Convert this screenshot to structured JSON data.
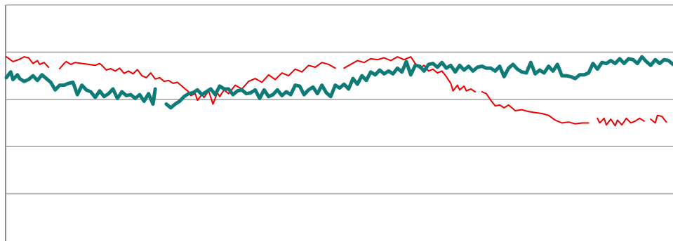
{
  "chart_data": {
    "type": "line",
    "title": "",
    "xlabel": "",
    "ylabel": "",
    "ylim": [
      0,
      5
    ],
    "yticks": [
      0,
      1,
      2,
      3,
      4,
      5
    ],
    "grid": true,
    "legend": "none",
    "x_count": 300,
    "series": [
      {
        "color": "#ee0000",
        "line_width": 2,
        "segments": [
          {
            "x": [
              0,
              3,
              6,
              8,
              10,
              12,
              14,
              15,
              17,
              19
            ],
            "y": [
              3.9,
              3.8,
              3.85,
              3.9,
              3.88,
              3.76,
              3.82,
              3.74,
              3.78,
              3.68
            ]
          },
          {
            "x": [
              24,
              26,
              27,
              29,
              31,
              34,
              37,
              40,
              42,
              43,
              45,
              47,
              49,
              51,
              53,
              55,
              57,
              59,
              61,
              63,
              65,
              67,
              69,
              71,
              73,
              75,
              77,
              79,
              80
            ],
            "y": [
              3.65,
              3.76,
              3.8,
              3.74,
              3.78,
              3.76,
              3.74,
              3.72,
              3.76,
              3.72,
              3.62,
              3.65,
              3.6,
              3.66,
              3.55,
              3.6,
              3.54,
              3.63,
              3.5,
              3.46,
              3.56,
              3.43,
              3.46,
              3.38,
              3.4,
              3.34,
              3.36,
              3.28,
              3.24
            ]
          },
          {
            "x": [
              80,
              82,
              83,
              85,
              86,
              88,
              89,
              91,
              93,
              95,
              96,
              98,
              100,
              103,
              106,
              109,
              112,
              115,
              118,
              121,
              124,
              127,
              130,
              133,
              136,
              139,
              142,
              145,
              148
            ],
            "y": [
              3.24,
              3.16,
              3.08,
              3.12,
              2.98,
              3.1,
              3.04,
              3.18,
              2.9,
              3.14,
              3.06,
              3.2,
              3.12,
              3.3,
              3.22,
              3.38,
              3.44,
              3.36,
              3.52,
              3.42,
              3.56,
              3.5,
              3.64,
              3.58,
              3.72,
              3.68,
              3.78,
              3.74,
              3.66
            ]
          },
          {
            "x": [
              152,
              155,
              158,
              161,
              164,
              167,
              170,
              173,
              176,
              179,
              182,
              184,
              186,
              188,
              190,
              192,
              194,
              196
            ],
            "y": [
              3.66,
              3.74,
              3.82,
              3.78,
              3.86,
              3.84,
              3.88,
              3.82,
              3.9,
              3.84,
              3.9,
              3.76,
              3.66,
              3.72,
              3.6,
              3.64,
              3.56,
              3.6
            ]
          },
          {
            "x": [
              196,
              198,
              200,
              201,
              203,
              204,
              206,
              207,
              209,
              211
            ],
            "y": [
              3.6,
              3.48,
              3.34,
              3.18,
              3.3,
              3.2,
              3.28,
              3.18,
              3.22,
              3.16
            ]
          },
          {
            "x": [
              214,
              216,
              218,
              220,
              222,
              224,
              226,
              229,
              232,
              235,
              238,
              241,
              244,
              247,
              250,
              253,
              256,
              259,
              262
            ],
            "y": [
              3.16,
              3.12,
              2.98,
              2.86,
              2.88,
              2.82,
              2.88,
              2.76,
              2.78,
              2.74,
              2.72,
              2.7,
              2.66,
              2.56,
              2.5,
              2.52,
              2.48,
              2.5,
              2.5
            ]
          },
          {
            "x": [
              266,
              267,
              269,
              270,
              272,
              274,
              275,
              277,
              279,
              281,
              283,
              285,
              287
            ],
            "y": [
              2.6,
              2.5,
              2.6,
              2.46,
              2.58,
              2.44,
              2.56,
              2.46,
              2.6,
              2.5,
              2.54,
              2.6,
              2.54
            ]
          },
          {
            "x": [
              290,
              292,
              293,
              295,
              297
            ],
            "y": [
              2.58,
              2.5,
              2.66,
              2.64,
              2.52
            ]
          }
        ]
      },
      {
        "color": "#0e7b78",
        "line_width": 5,
        "segments": [
          {
            "x": [
              0,
              2,
              3,
              5,
              6,
              8,
              10,
              12,
              14,
              16,
              18,
              20,
              22,
              24,
              26,
              28,
              30,
              32,
              34,
              36,
              38,
              40,
              42,
              44,
              46,
              48,
              50,
              52,
              54,
              56,
              58,
              60,
              62,
              64,
              66,
              67
            ],
            "y": [
              3.46,
              3.58,
              3.42,
              3.52,
              3.44,
              3.38,
              3.42,
              3.5,
              3.4,
              3.52,
              3.44,
              3.36,
              3.2,
              3.3,
              3.3,
              3.34,
              3.36,
              3.1,
              3.3,
              3.2,
              3.16,
              3.04,
              3.18,
              3.06,
              3.12,
              3.22,
              3.02,
              3.16,
              3.08,
              3.1,
              3.02,
              3.1,
              2.96,
              3.12,
              2.9,
              3.22
            ]
          },
          {
            "x": [
              72,
              74,
              76,
              78,
              80,
              82,
              84,
              86,
              88,
              90,
              92,
              94,
              96,
              98,
              100,
              102,
              104,
              106,
              108,
              110,
              112,
              114,
              116,
              118,
              120,
              122,
              124,
              126,
              128,
              130,
              132,
              134,
              136,
              138,
              140,
              142,
              144,
              146,
              148,
              150,
              152,
              154,
              156,
              158,
              160,
              162,
              164,
              166,
              168,
              170,
              172,
              174,
              176,
              178
            ],
            "y": [
              2.9,
              2.82,
              2.9,
              2.96,
              3.06,
              3.12,
              3.14,
              3.2,
              3.1,
              3.16,
              3.22,
              3.1,
              3.28,
              3.22,
              3.22,
              3.1,
              3.18,
              3.2,
              3.12,
              3.14,
              3.2,
              3.02,
              3.2,
              3.06,
              3.1,
              3.2,
              3.08,
              3.16,
              3.1,
              3.3,
              3.28,
              3.1,
              3.2,
              3.26,
              3.12,
              3.3,
              3.14,
              3.06,
              3.3,
              3.24,
              3.32,
              3.22,
              3.44,
              3.32,
              3.5,
              3.4,
              3.58,
              3.52,
              3.62,
              3.54,
              3.6,
              3.54,
              3.66,
              3.58
            ]
          },
          {
            "x": [
              178,
              180,
              182,
              184,
              186,
              188,
              190,
              192,
              194,
              196,
              198,
              200,
              202,
              204,
              206,
              208,
              210,
              212,
              214,
              216,
              218,
              220,
              222,
              224,
              226,
              228,
              230,
              232,
              234,
              236,
              238,
              240,
              242,
              244,
              246,
              248,
              250,
              252,
              254,
              256,
              258,
              260,
              262,
              264,
              266,
              268,
              270,
              272,
              274,
              276,
              278,
              280,
              282,
              284,
              286,
              288,
              290,
              292,
              294,
              296,
              298,
              300
            ],
            "y": [
              3.58,
              3.8,
              3.52,
              3.72,
              3.7,
              3.6,
              3.74,
              3.76,
              3.68,
              3.78,
              3.66,
              3.72,
              3.58,
              3.72,
              3.62,
              3.7,
              3.6,
              3.68,
              3.7,
              3.66,
              3.66,
              3.6,
              3.7,
              3.48,
              3.66,
              3.74,
              3.64,
              3.58,
              3.56,
              3.78,
              3.54,
              3.62,
              3.56,
              3.7,
              3.6,
              3.74,
              3.5,
              3.5,
              3.48,
              3.44,
              3.52,
              3.52,
              3.56,
              3.76,
              3.64,
              3.78,
              3.76,
              3.82,
              3.76,
              3.86,
              3.76,
              3.86,
              3.84,
              3.76,
              3.9,
              3.8,
              3.72,
              3.84,
              3.76,
              3.84,
              3.82,
              3.74
            ]
          }
        ]
      }
    ]
  }
}
